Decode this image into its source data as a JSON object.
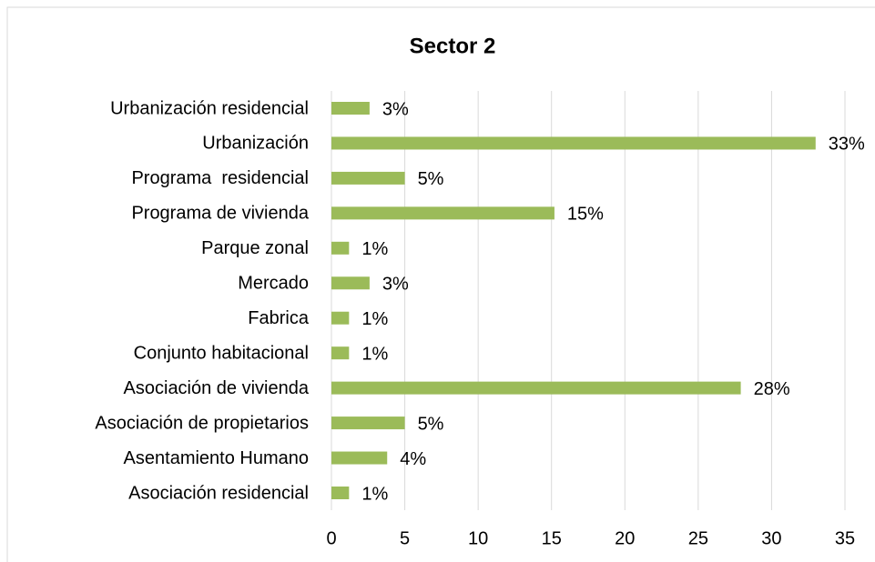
{
  "chart_data": {
    "type": "hbar",
    "title": "Sector 2",
    "categories": [
      "Urbanización residencial",
      "Urbanización",
      "Programa  residencial",
      "Programa de vivienda",
      "Parque zonal",
      "Mercado",
      "Fabrica",
      "Conjunto habitacional",
      "Asociación de vivienda",
      "Asociación de propietarios",
      "Asentamiento Humano",
      "Asociación residencial"
    ],
    "values": [
      2.6,
      33,
      5,
      15.2,
      1.2,
      2.6,
      1.2,
      1.2,
      27.9,
      5,
      3.8,
      1.2
    ],
    "value_labels": [
      "3%",
      "33%",
      "5%",
      "15%",
      "1%",
      "3%",
      "1%",
      "1%",
      "28%",
      "5%",
      "4%",
      "1%"
    ],
    "color": "#9bbb59",
    "xlim": [
      0,
      35
    ],
    "xticks": [
      0,
      5,
      10,
      15,
      20,
      25,
      30,
      35
    ],
    "grid": true
  }
}
